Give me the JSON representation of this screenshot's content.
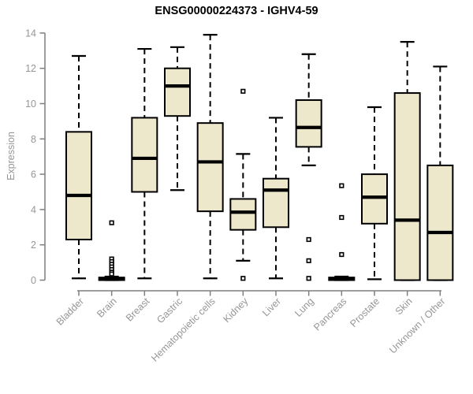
{
  "window": {
    "title": "ENSG00000224373 - IGHV4-59"
  },
  "style": {
    "background": "#ffffff",
    "box_fill": "#EDE7CB",
    "box_stroke": "#000000",
    "median_color": "#000000",
    "axis_color": "#7f7f7f",
    "tick_label_color": "#969696",
    "title_color": "#000000"
  },
  "chart_data": {
    "type": "box",
    "title": "ENSG00000224373 - IGHV4-59",
    "xlabel": "",
    "ylabel": "Expression",
    "ylim": [
      0,
      14
    ],
    "yticks": [
      0,
      2,
      4,
      6,
      8,
      10,
      12,
      14
    ],
    "grid": false,
    "legend": "none",
    "categories": [
      "Bladder",
      "Brain",
      "Breast",
      "Gastric",
      "Hematopoietic cells",
      "Kidney",
      "Liver",
      "Lung",
      "Pancreas",
      "Prostate",
      "Skin",
      "Unknown / Other"
    ],
    "series": [
      {
        "name": "Bladder",
        "low": 0.1,
        "q1": 2.3,
        "median": 4.8,
        "q3": 8.4,
        "high": 12.7,
        "outliers": []
      },
      {
        "name": "Brain",
        "low": 0.0,
        "q1": 0.0,
        "median": 0.08,
        "q3": 0.15,
        "high": 0.2,
        "outliers": [
          3.25,
          1.2,
          1.05,
          0.9,
          0.75,
          0.6,
          0.45,
          0.35
        ]
      },
      {
        "name": "Breast",
        "low": 0.1,
        "q1": 5.0,
        "median": 6.9,
        "q3": 9.2,
        "high": 13.1,
        "outliers": []
      },
      {
        "name": "Gastric",
        "low": 5.1,
        "q1": 9.3,
        "median": 11.0,
        "q3": 12.0,
        "high": 13.2,
        "outliers": []
      },
      {
        "name": "Hematopoietic cells",
        "low": 0.1,
        "q1": 3.9,
        "median": 6.7,
        "q3": 8.9,
        "high": 13.9,
        "outliers": []
      },
      {
        "name": "Kidney",
        "low": 1.1,
        "q1": 2.85,
        "median": 3.85,
        "q3": 4.6,
        "high": 7.15,
        "outliers": [
          10.7,
          0.1
        ]
      },
      {
        "name": "Liver",
        "low": 0.1,
        "q1": 3.0,
        "median": 5.1,
        "q3": 5.75,
        "high": 9.2,
        "outliers": []
      },
      {
        "name": "Lung",
        "low": 6.5,
        "q1": 7.55,
        "median": 8.65,
        "q3": 10.2,
        "high": 12.8,
        "outliers": [
          2.3,
          1.1,
          0.1
        ]
      },
      {
        "name": "Pancreas",
        "low": 0.0,
        "q1": 0.0,
        "median": 0.08,
        "q3": 0.15,
        "high": 0.2,
        "outliers": [
          5.35,
          3.55,
          1.45
        ]
      },
      {
        "name": "Prostate",
        "low": 0.05,
        "q1": 3.2,
        "median": 4.7,
        "q3": 6.0,
        "high": 9.8,
        "outliers": []
      },
      {
        "name": "Skin",
        "low": 0.0,
        "q1": 0.0,
        "median": 3.4,
        "q3": 10.6,
        "high": 13.5,
        "outliers": []
      },
      {
        "name": "Unknown / Other",
        "low": 0.0,
        "q1": 0.0,
        "median": 2.7,
        "q3": 6.5,
        "high": 12.1,
        "outliers": []
      }
    ]
  }
}
